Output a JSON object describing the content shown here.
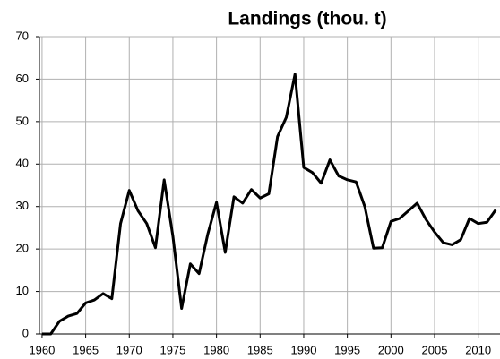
{
  "chart_data": {
    "type": "line",
    "title": "Landings (thou. t)",
    "x": [
      1960,
      1961,
      1962,
      1963,
      1964,
      1965,
      1966,
      1967,
      1968,
      1969,
      1970,
      1971,
      1972,
      1973,
      1974,
      1975,
      1976,
      1977,
      1978,
      1979,
      1980,
      1981,
      1982,
      1983,
      1984,
      1985,
      1986,
      1987,
      1988,
      1989,
      1990,
      1991,
      1992,
      1993,
      1994,
      1995,
      1996,
      1997,
      1998,
      1999,
      2000,
      2001,
      2002,
      2003,
      2004,
      2005,
      2006,
      2007,
      2008,
      2009,
      2010,
      2011,
      2012
    ],
    "values": [
      0,
      0,
      3,
      4.2,
      4.8,
      7.3,
      8,
      9.5,
      8.3,
      26,
      33.8,
      29,
      26,
      20.3,
      36.3,
      23,
      6,
      16.5,
      14.2,
      23.5,
      31,
      19.2,
      32.3,
      30.8,
      34,
      32,
      33,
      46.5,
      51,
      61.2,
      39.2,
      38,
      35.5,
      41,
      37.2,
      36.3,
      35.8,
      30,
      20.2,
      20.3,
      26.5,
      27.2,
      29,
      30.8,
      27,
      24,
      21.5,
      21,
      22.2,
      27.2,
      26,
      26.3,
      29.2
    ],
    "color": "#000000",
    "xlim": [
      1959.7,
      2012.5
    ],
    "xticks": [
      1960,
      1965,
      1970,
      1975,
      1980,
      1985,
      1990,
      1995,
      2000,
      2005,
      2010
    ],
    "ylim": [
      0,
      70
    ],
    "yticks": [
      0,
      10,
      20,
      30,
      40,
      50,
      60,
      70
    ],
    "grid": true
  }
}
